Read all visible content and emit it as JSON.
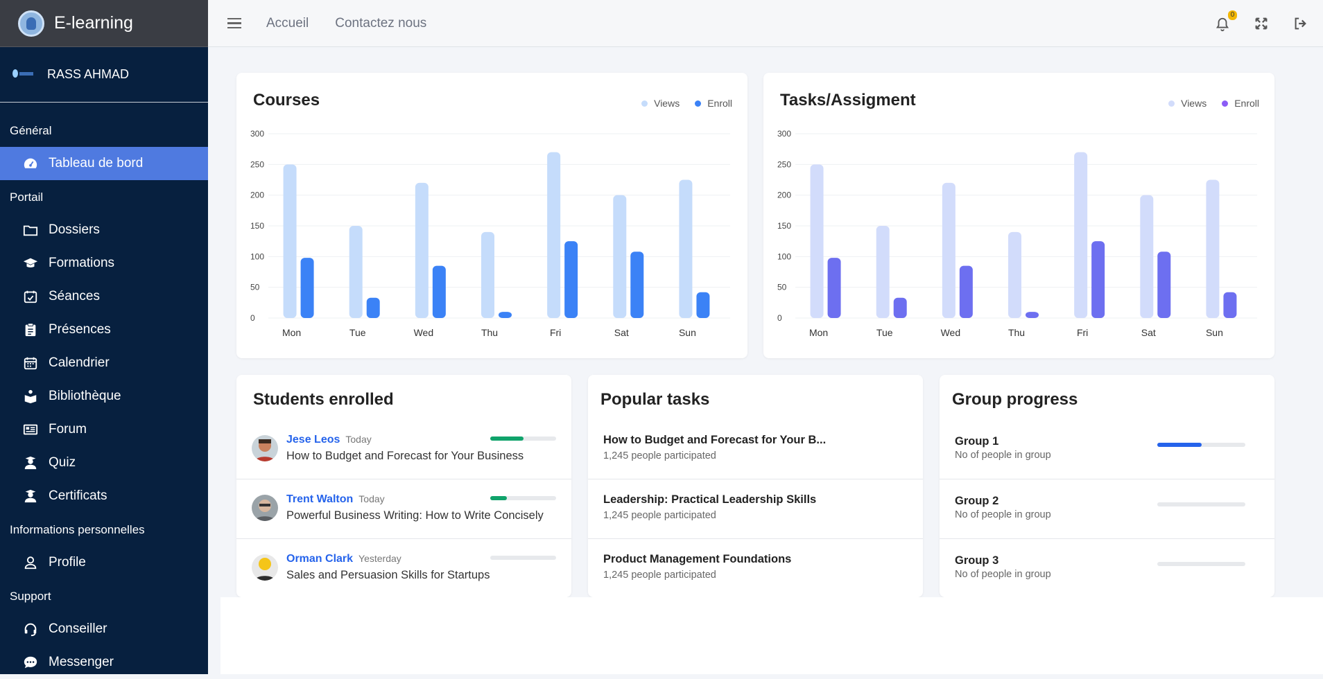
{
  "app": {
    "title": "E-learning"
  },
  "user": {
    "name": "RASS AHMAD"
  },
  "sidebar": {
    "sections": [
      {
        "label": "Général"
      },
      {
        "label": "Portail"
      },
      {
        "label": "Informations personnelles"
      },
      {
        "label": "Support"
      }
    ],
    "items": [
      {
        "label": "Tableau de bord",
        "icon": "dashboard-icon"
      },
      {
        "label": "Dossiers",
        "icon": "folder-icon"
      },
      {
        "label": "Formations",
        "icon": "graduation-cap-icon"
      },
      {
        "label": "Séances",
        "icon": "calendar-check-icon"
      },
      {
        "label": "Présences",
        "icon": "clipboard-list-icon"
      },
      {
        "label": "Calendrier",
        "icon": "calendar-icon"
      },
      {
        "label": "Bibliothèque",
        "icon": "book-reader-icon"
      },
      {
        "label": "Forum",
        "icon": "newspaper-icon"
      },
      {
        "label": "Quiz",
        "icon": "user-graduate-icon"
      },
      {
        "label": "Certificats",
        "icon": "user-graduate-icon"
      },
      {
        "label": "Profile",
        "icon": "user-icon"
      },
      {
        "label": "Conseiller",
        "icon": "headset-icon"
      },
      {
        "label": "Messenger",
        "icon": "comment-dots-icon"
      }
    ]
  },
  "topbar": {
    "links": [
      "Accueil",
      "Contactez nous"
    ],
    "notification_count": "0"
  },
  "colors": {
    "accent": "#4f7ae0",
    "sidebar_bg": "#07203f",
    "courses_views": "#c5dcfb",
    "courses_enroll": "#3b82f6",
    "tasks_views": "#d2dcfb",
    "tasks_enroll": "#6d6ff0"
  },
  "chart_data": [
    {
      "type": "bar",
      "title": "Courses",
      "categories": [
        "Mon",
        "Tue",
        "Wed",
        "Thu",
        "Fri",
        "Sat",
        "Sun"
      ],
      "series": [
        {
          "name": "Views",
          "values": [
            250,
            150,
            220,
            140,
            270,
            200,
            225
          ]
        },
        {
          "name": "Enroll",
          "values": [
            98,
            33,
            85,
            10,
            125,
            108,
            42
          ]
        }
      ],
      "ylim": [
        0,
        300
      ],
      "yticks": [
        0,
        50,
        100,
        150,
        200,
        250,
        300
      ],
      "grid": true,
      "legend": "top-right"
    },
    {
      "type": "bar",
      "title": "Tasks/Assigment",
      "categories": [
        "Mon",
        "Tue",
        "Wed",
        "Thu",
        "Fri",
        "Sat",
        "Sun"
      ],
      "series": [
        {
          "name": "Views",
          "values": [
            250,
            150,
            220,
            140,
            270,
            200,
            225
          ]
        },
        {
          "name": "Enroll",
          "values": [
            98,
            33,
            85,
            10,
            125,
            108,
            42
          ]
        }
      ],
      "ylim": [
        0,
        300
      ],
      "yticks": [
        0,
        50,
        100,
        150,
        200,
        250,
        300
      ],
      "grid": true,
      "legend": "top-right"
    }
  ],
  "students": {
    "title": "Students enrolled",
    "rows": [
      {
        "name": "Jese Leos",
        "date": "Today",
        "course": "How to Budget and Forecast for Your Business",
        "progress": 0.5,
        "color": "#10a36b"
      },
      {
        "name": "Trent Walton",
        "date": "Today",
        "course": "Powerful Business Writing: How to Write Concisely",
        "progress": 0.25,
        "color": "#10a36b"
      },
      {
        "name": "Orman Clark",
        "date": "Yesterday",
        "course": "Sales and Persuasion Skills for Startups",
        "progress": 0,
        "color": "#10a36b"
      }
    ]
  },
  "tasks": {
    "title": "Popular tasks",
    "rows": [
      {
        "title": "How to Budget and Forecast for Your B...",
        "sub": "1,245 people participated"
      },
      {
        "title": "Leadership: Practical Leadership Skills",
        "sub": "1,245 people participated"
      },
      {
        "title": "Product Management Foundations",
        "sub": "1,245 people participated"
      }
    ]
  },
  "groups": {
    "title": "Group progress",
    "rows": [
      {
        "title": "Group 1",
        "sub": "No of people in group",
        "progress": 0.5
      },
      {
        "title": "Group 2",
        "sub": "No of people in group",
        "progress": 0
      },
      {
        "title": "Group 3",
        "sub": "No of people in group",
        "progress": 0
      }
    ]
  }
}
